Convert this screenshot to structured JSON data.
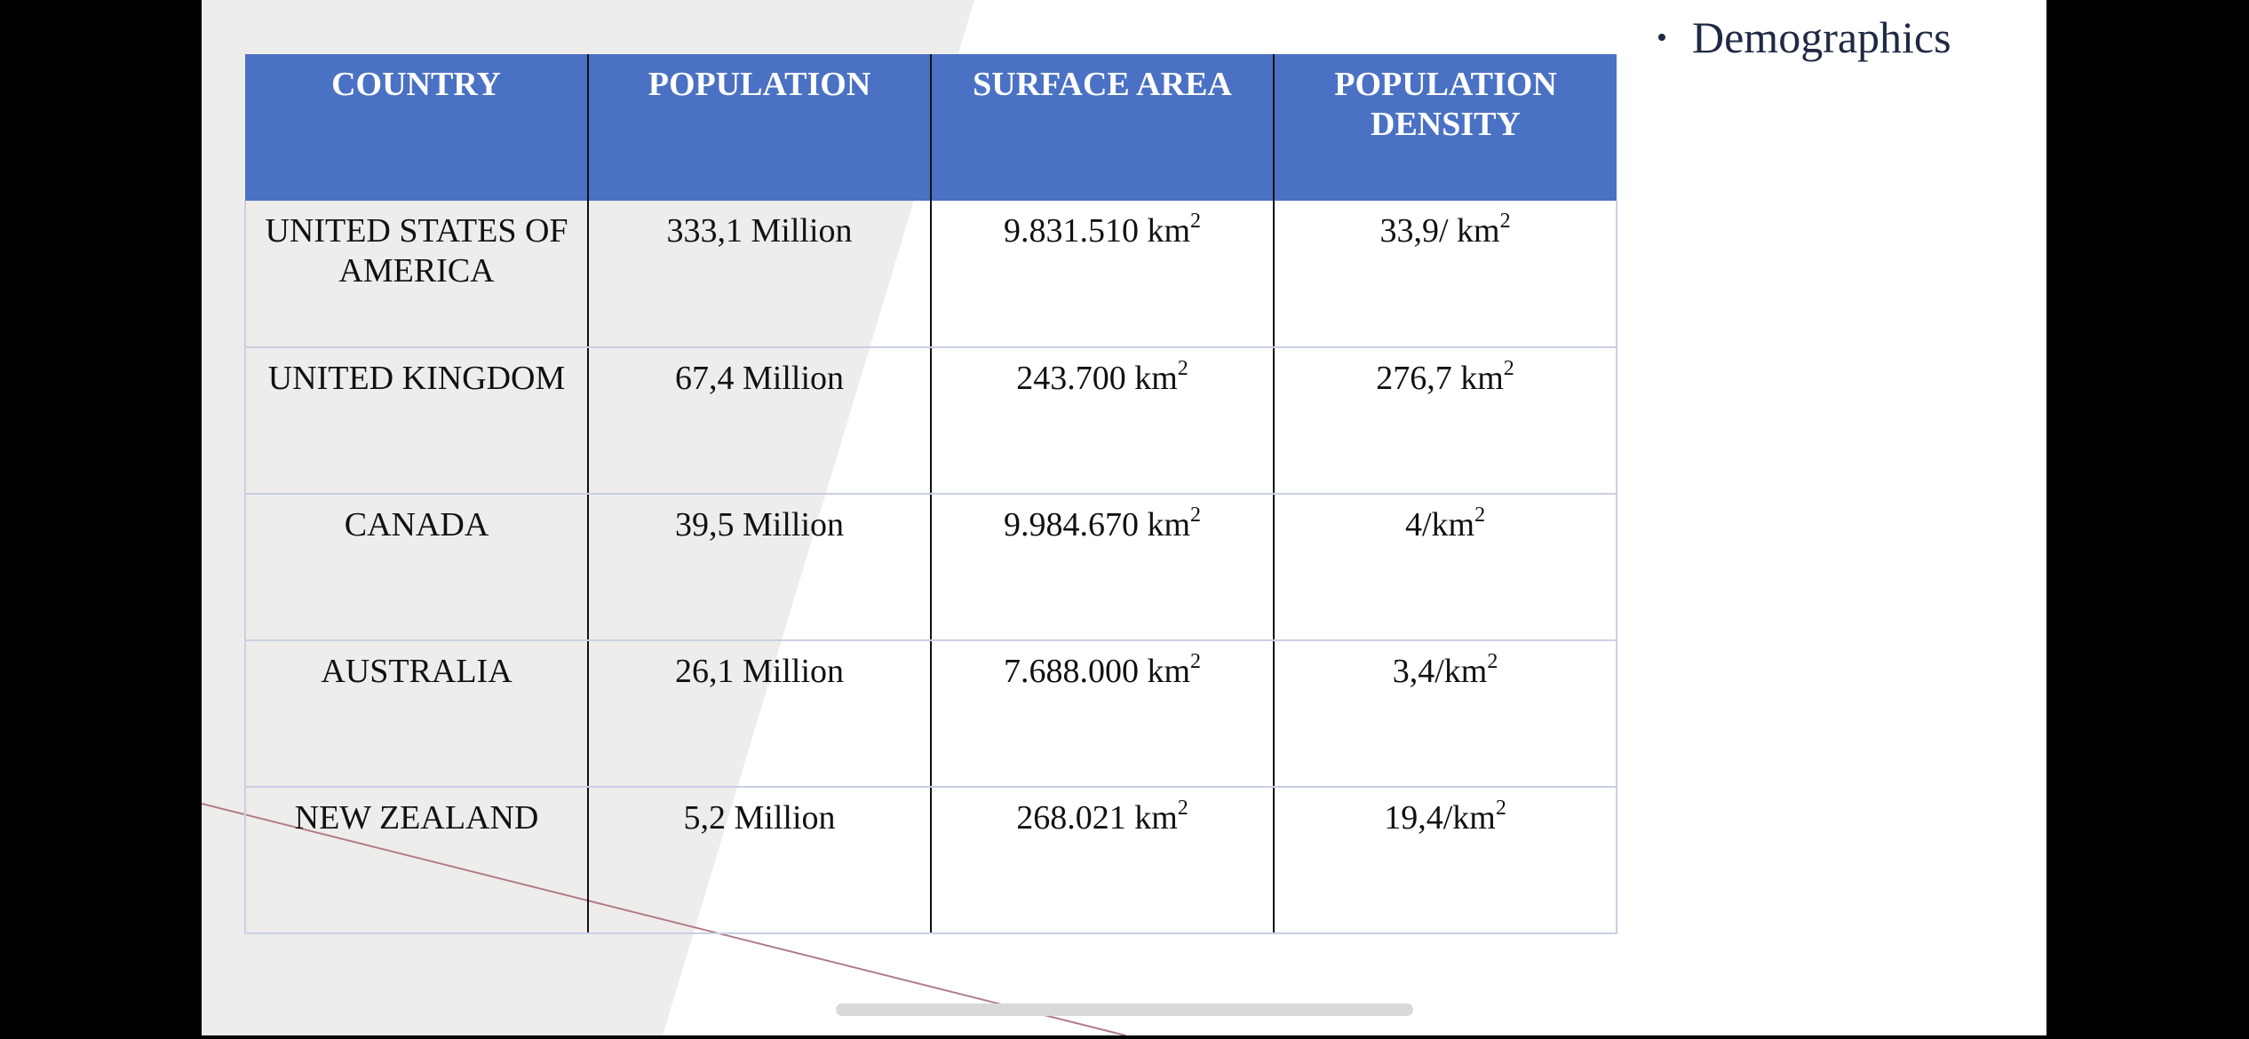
{
  "table": {
    "headers": [
      "COUNTRY",
      "POPULATION",
      "SURFACE AREA",
      "POPULATION DENSITY"
    ],
    "rows": [
      {
        "country": "UNITED STATES OF AMERICA",
        "population": "333,1 Million",
        "area": "9.831.510 km",
        "density": "33,9/ km"
      },
      {
        "country": "UNITED KINGDOM",
        "population": "67,4 Million",
        "area": "243.700 km",
        "density": "276,7 km"
      },
      {
        "country": "CANADA",
        "population": "39,5 Million",
        "area": "9.984.670 km",
        "density": "4/km"
      },
      {
        "country": "AUSTRALIA",
        "population": "26,1 Million",
        "area": "7.688.000 km",
        "density": "3,4/km"
      },
      {
        "country": "NEW ZEALAND",
        "population": "5,2 Million",
        "area": "268.021 km",
        "density": "19,4/km"
      }
    ],
    "unit_superscript": "2"
  },
  "bullets": [
    {
      "marker": "•",
      "text": "Demographics"
    }
  ],
  "colors": {
    "header_bg": "#4a71c3",
    "header_text": "#ffffff",
    "shape_gray": "#eeedec",
    "accent_line": "#b07b86"
  }
}
